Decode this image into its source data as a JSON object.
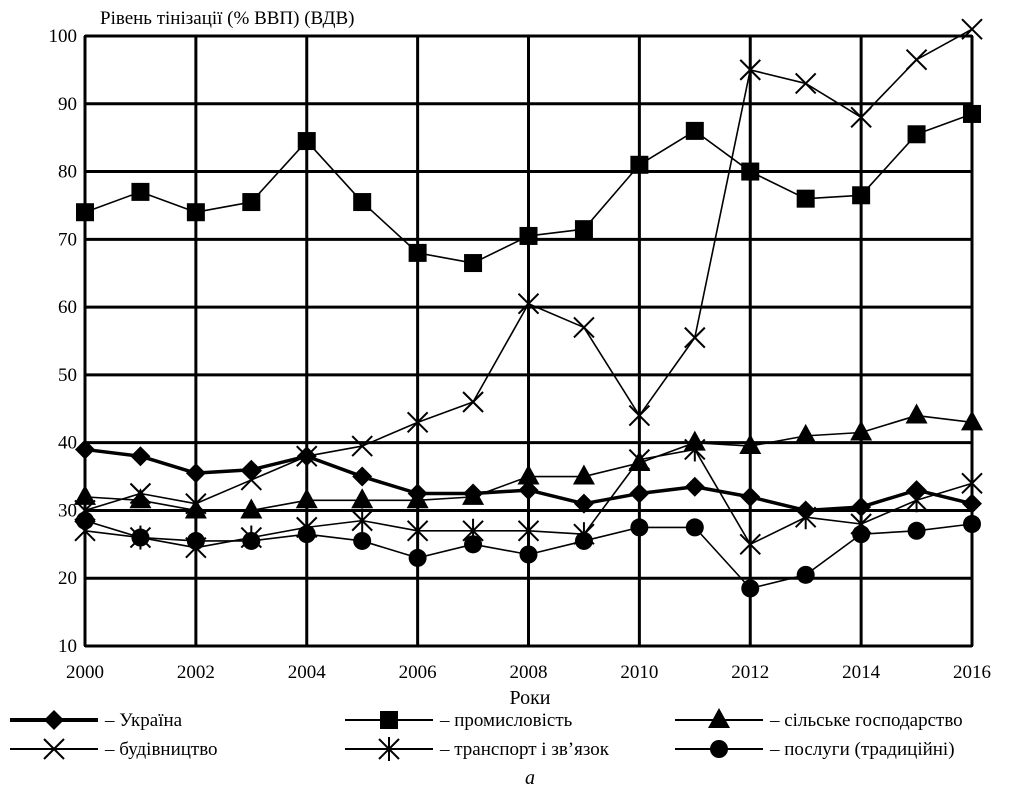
{
  "chart_data": {
    "type": "line",
    "title": "Рівень тінізації (% ВВП) (ВДВ)",
    "xlabel": "Роки",
    "ylabel": "Рівень тінізації (% ВВП) (ВДВ)",
    "caption": "а",
    "x": [
      2000,
      2001,
      2002,
      2003,
      2004,
      2005,
      2006,
      2007,
      2008,
      2009,
      2010,
      2011,
      2012,
      2013,
      2014,
      2015,
      2016
    ],
    "x_ticks": [
      "2000",
      "2002",
      "2004",
      "2006",
      "2008",
      "2010",
      "2012",
      "2014",
      "2016"
    ],
    "y_ticks": [
      "10",
      "20",
      "30",
      "40",
      "50",
      "60",
      "70",
      "80",
      "90",
      "100"
    ],
    "xlim": [
      2000,
      2016
    ],
    "ylim": [
      10,
      100
    ],
    "grid": true,
    "legend_position": "bottom",
    "series": [
      {
        "name": "Україна",
        "legend": "– Україна",
        "marker": "diamond",
        "values": [
          39,
          38,
          35.5,
          36,
          38,
          35,
          32.5,
          32.5,
          33,
          31,
          32.5,
          33.5,
          32,
          30,
          30.5,
          33,
          31
        ]
      },
      {
        "name": "промисловість",
        "legend": "– промисловість",
        "marker": "square",
        "values": [
          74,
          77,
          74,
          75.5,
          84.5,
          75.5,
          68,
          66.5,
          70.5,
          71.5,
          81,
          86,
          80,
          76,
          76.5,
          85.5,
          88.5
        ]
      },
      {
        "name": "сільське господарство",
        "legend": "– сільське господарство",
        "marker": "triangle",
        "values": [
          32,
          31.5,
          30,
          30,
          31.5,
          31.5,
          31.5,
          32,
          35,
          35,
          37,
          40,
          39.5,
          41,
          41.5,
          44,
          43
        ]
      },
      {
        "name": "будівництво",
        "legend": "– будівництво",
        "marker": "x",
        "values": [
          30,
          32.5,
          31,
          34.5,
          38,
          39.5,
          43,
          46,
          60.5,
          57,
          44,
          55.5,
          95,
          93,
          88,
          96.5,
          101
        ]
      },
      {
        "name": "транспорт і зв’язок",
        "legend": "– транспорт і зв’язок",
        "marker": "star",
        "values": [
          27,
          26,
          24.5,
          26,
          27.5,
          28.5,
          27,
          27,
          27,
          26.5,
          37.5,
          39,
          25,
          29,
          28,
          31.5,
          34
        ]
      },
      {
        "name": "послуги (традиційні)",
        "legend": "– послуги (традиційні)",
        "marker": "circle",
        "values": [
          28.5,
          26,
          25.5,
          25.5,
          26.5,
          25.5,
          23,
          25,
          23.5,
          25.5,
          27.5,
          27.5,
          18.5,
          20.5,
          26.5,
          27,
          28
        ]
      }
    ]
  }
}
